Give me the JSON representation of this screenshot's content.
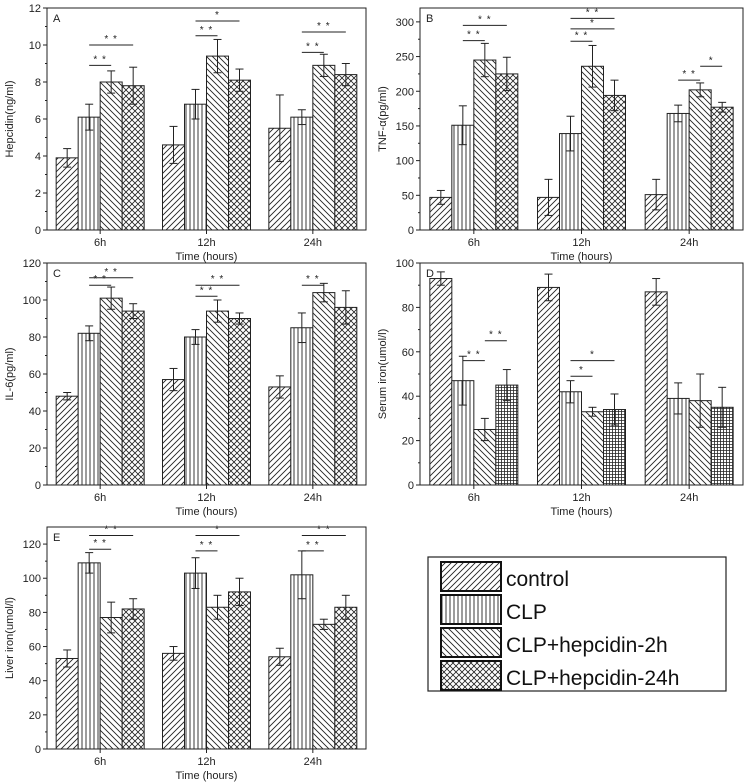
{
  "series_names": [
    "control",
    "CLP",
    "CLP+hepcidin-2h",
    "CLP+hepcidin-24h"
  ],
  "legend": {
    "entries": [
      {
        "pattern": "diag-fwd",
        "label": "control"
      },
      {
        "pattern": "vertical",
        "label": "CLP"
      },
      {
        "pattern": "diag-back",
        "label": "CLP+hepcidin-2h"
      },
      {
        "pattern": "cross-hatch",
        "label": "CLP+hepcidin-24h"
      }
    ]
  },
  "chart_data": [
    {
      "type": "bar",
      "panel_letter": "A",
      "categories": [
        "6h",
        "12h",
        "24h"
      ],
      "xlabel": "Time (hours)",
      "ylabel": "Hepcidin(ng/ml)",
      "ylim": [
        0,
        12
      ],
      "yticks": [
        0,
        2,
        4,
        6,
        8,
        10,
        12
      ],
      "series": [
        {
          "name": "control",
          "pattern": "diag-fwd",
          "values": [
            3.9,
            4.6,
            5.5
          ],
          "errors": [
            0.5,
            1.0,
            1.8
          ]
        },
        {
          "name": "CLP",
          "pattern": "vertical",
          "values": [
            6.1,
            6.8,
            6.1
          ],
          "errors": [
            0.7,
            0.8,
            0.4
          ]
        },
        {
          "name": "CLP+hepcidin-2h",
          "pattern": "diag-back",
          "values": [
            8.0,
            9.4,
            8.9
          ],
          "errors": [
            0.6,
            0.9,
            0.6
          ]
        },
        {
          "name": "CLP+hepcidin-24h",
          "pattern": "cross-hatch",
          "values": [
            7.8,
            8.1,
            8.4
          ],
          "errors": [
            1.0,
            0.6,
            0.6
          ]
        }
      ],
      "significance": [
        {
          "group": 0,
          "from": 1,
          "to": 2,
          "label": "* *",
          "y": 8.9
        },
        {
          "group": 0,
          "from": 1,
          "to": 3,
          "label": "* *",
          "y": 10.0
        },
        {
          "group": 1,
          "from": 1,
          "to": 2,
          "label": "* *",
          "y": 10.5
        },
        {
          "group": 1,
          "from": 1,
          "to": 3,
          "label": "*",
          "y": 11.3
        },
        {
          "group": 2,
          "from": 1,
          "to": 2,
          "label": "* *",
          "y": 9.6
        },
        {
          "group": 2,
          "from": 1,
          "to": 3,
          "label": "* *",
          "y": 10.7
        }
      ]
    },
    {
      "type": "bar",
      "panel_letter": "B",
      "categories": [
        "6h",
        "12h",
        "24h"
      ],
      "xlabel": "Time (hours)",
      "ylabel": "TNF-α(pg/ml)",
      "ylim": [
        0,
        320
      ],
      "yticks": [
        0,
        50,
        100,
        150,
        200,
        250,
        300
      ],
      "series": [
        {
          "name": "control",
          "pattern": "diag-fwd",
          "values": [
            47,
            47,
            51
          ],
          "errors": [
            10,
            26,
            22
          ]
        },
        {
          "name": "CLP",
          "pattern": "vertical",
          "values": [
            151,
            139,
            168
          ],
          "errors": [
            28,
            25,
            12
          ]
        },
        {
          "name": "CLP+hepcidin-2h",
          "pattern": "diag-back",
          "values": [
            245,
            236,
            202
          ],
          "errors": [
            24,
            30,
            10
          ]
        },
        {
          "name": "CLP+hepcidin-24h",
          "pattern": "cross-hatch",
          "values": [
            225,
            194,
            177
          ],
          "errors": [
            24,
            22,
            7
          ]
        }
      ],
      "significance": [
        {
          "group": 0,
          "from": 1,
          "to": 2,
          "label": "* *",
          "y": 273
        },
        {
          "group": 0,
          "from": 1,
          "to": 3,
          "label": "* *",
          "y": 295
        },
        {
          "group": 1,
          "from": 1,
          "to": 2,
          "label": "* *",
          "y": 272
        },
        {
          "group": 1,
          "from": 1,
          "to": 3,
          "label": "*",
          "y": 290
        },
        {
          "group": 1,
          "from": 1,
          "to": 3,
          "label": "* *",
          "y": 305
        },
        {
          "group": 2,
          "from": 1,
          "to": 2,
          "label": "* *",
          "y": 216
        },
        {
          "group": 2,
          "from": 2,
          "to": 3,
          "label": "*",
          "y": 236
        }
      ]
    },
    {
      "type": "bar",
      "panel_letter": "C",
      "categories": [
        "6h",
        "12h",
        "24h"
      ],
      "xlabel": "Time (hours)",
      "ylabel": "IL-6(pg/ml)",
      "ylim": [
        0,
        120
      ],
      "yticks": [
        0,
        20,
        40,
        60,
        80,
        100,
        120
      ],
      "series": [
        {
          "name": "control",
          "pattern": "diag-fwd",
          "values": [
            48,
            57,
            53
          ],
          "errors": [
            2,
            6,
            6
          ]
        },
        {
          "name": "CLP",
          "pattern": "vertical",
          "values": [
            82,
            80,
            85
          ],
          "errors": [
            4,
            4,
            8
          ]
        },
        {
          "name": "CLP+hepcidin-2h",
          "pattern": "diag-back",
          "values": [
            101,
            94,
            104
          ],
          "errors": [
            6,
            6,
            5
          ]
        },
        {
          "name": "CLP+hepcidin-24h",
          "pattern": "cross-hatch",
          "values": [
            94,
            90,
            96
          ],
          "errors": [
            4,
            3,
            9
          ]
        }
      ],
      "significance": [
        {
          "group": 0,
          "from": 1,
          "to": 2,
          "label": "* *",
          "y": 108
        },
        {
          "group": 0,
          "from": 1,
          "to": 3,
          "label": "* *",
          "y": 112
        },
        {
          "group": 1,
          "from": 1,
          "to": 2,
          "label": "* *",
          "y": 102
        },
        {
          "group": 1,
          "from": 1,
          "to": 3,
          "label": "* *",
          "y": 108
        },
        {
          "group": 2,
          "from": 1,
          "to": 2,
          "label": "* *",
          "y": 108
        }
      ]
    },
    {
      "type": "bar",
      "panel_letter": "D",
      "categories": [
        "6h",
        "12h",
        "24h"
      ],
      "xlabel": "Time (hours)",
      "ylabel": "Serum iron(umol/l)",
      "ylim": [
        0,
        100
      ],
      "yticks": [
        0,
        20,
        40,
        60,
        80,
        100
      ],
      "series": [
        {
          "name": "control",
          "pattern": "diag-fwd",
          "values": [
            93,
            89,
            87
          ],
          "errors": [
            3,
            6,
            6
          ]
        },
        {
          "name": "CLP",
          "pattern": "vertical",
          "values": [
            47,
            42,
            39
          ],
          "errors": [
            11,
            5,
            7
          ]
        },
        {
          "name": "CLP+hepcidin-2h",
          "pattern": "diag-back",
          "values": [
            25,
            33,
            38
          ],
          "errors": [
            5,
            2,
            12
          ]
        },
        {
          "name": "CLP+hepcidin-24h",
          "pattern": "cross-hatch",
          "values": [
            45,
            34,
            35
          ],
          "errors": [
            7,
            7,
            9
          ]
        }
      ],
      "significance": [
        {
          "group": 0,
          "from": 1,
          "to": 2,
          "label": "* *",
          "y": 56
        },
        {
          "group": 0,
          "from": 2,
          "to": 3,
          "label": "* *",
          "y": 65
        },
        {
          "group": 1,
          "from": 1,
          "to": 2,
          "label": "*",
          "y": 49
        },
        {
          "group": 1,
          "from": 1,
          "to": 3,
          "label": "*",
          "y": 56
        }
      ]
    },
    {
      "type": "bar",
      "panel_letter": "E",
      "categories": [
        "6h",
        "12h",
        "24h"
      ],
      "xlabel": "Time (hours)",
      "ylabel": "Liver iron(umol/l)",
      "ylim": [
        0,
        130
      ],
      "yticks": [
        0,
        20,
        40,
        60,
        80,
        100,
        120
      ],
      "series": [
        {
          "name": "control",
          "pattern": "diag-fwd",
          "values": [
            53,
            56,
            54
          ],
          "errors": [
            5,
            4,
            5
          ]
        },
        {
          "name": "CLP",
          "pattern": "vertical",
          "values": [
            109,
            103,
            102
          ],
          "errors": [
            6,
            9,
            14
          ]
        },
        {
          "name": "CLP+hepcidin-2h",
          "pattern": "diag-back",
          "values": [
            77,
            83,
            73
          ],
          "errors": [
            9,
            7,
            3
          ]
        },
        {
          "name": "CLP+hepcidin-24h",
          "pattern": "cross-hatch",
          "values": [
            82,
            92,
            83
          ],
          "errors": [
            6,
            8,
            7
          ]
        }
      ],
      "significance": [
        {
          "group": 0,
          "from": 1,
          "to": 2,
          "label": "* *",
          "y": 117
        },
        {
          "group": 0,
          "from": 1,
          "to": 3,
          "label": "* *",
          "y": 125
        },
        {
          "group": 1,
          "from": 1,
          "to": 2,
          "label": "* *",
          "y": 116
        },
        {
          "group": 1,
          "from": 1,
          "to": 3,
          "label": "*",
          "y": 125
        },
        {
          "group": 2,
          "from": 1,
          "to": 2,
          "label": "* *",
          "y": 116
        },
        {
          "group": 2,
          "from": 1,
          "to": 3,
          "label": "* *",
          "y": 125
        }
      ]
    }
  ]
}
